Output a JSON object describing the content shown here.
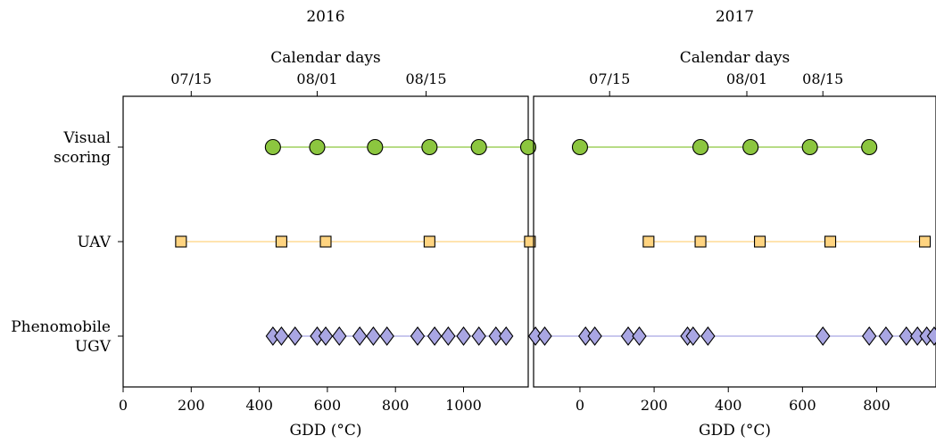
{
  "chart_data": {
    "type": "scatter",
    "row_labels": [
      [
        "Visual",
        "scoring"
      ],
      [
        "UAV"
      ],
      [
        "Phenomobile",
        "UGV"
      ]
    ],
    "panels": [
      {
        "year": "2016",
        "top_axis_label": "Calendar days",
        "top_ticks": [
          {
            "label": "07/15",
            "gdd": 200
          },
          {
            "label": "08/01",
            "gdd": 570
          },
          {
            "label": "08/15",
            "gdd": 890
          }
        ],
        "xlabel": "GDD (°C)",
        "xlim": [
          0,
          1190
        ],
        "xticks": [
          0,
          200,
          400,
          600,
          800,
          1000
        ],
        "series": [
          {
            "name": "Visual scoring",
            "marker": "circle",
            "color": "#8cc63f",
            "line_color": "#8cc63f",
            "x": [
              440,
              570,
              740,
              900,
              1045,
              1190
            ]
          },
          {
            "name": "UAV",
            "marker": "square",
            "color": "#ffd480",
            "line_color": "#ffd480",
            "x": [
              170,
              465,
              595,
              900,
              1195
            ]
          },
          {
            "name": "Phenomobile UGV",
            "marker": "diamond",
            "color": "#a9a6e3",
            "line_color": "#a9a6e3",
            "x": [
              440,
              465,
              505,
              570,
              595,
              635,
              695,
              735,
              775,
              865,
              915,
              955,
              1000,
              1045,
              1095,
              1125
            ]
          }
        ]
      },
      {
        "year": "2017",
        "top_axis_label": "Calendar days",
        "top_ticks": [
          {
            "label": "07/15",
            "gdd": 80
          },
          {
            "label": "08/01",
            "gdd": 450
          },
          {
            "label": "08/15",
            "gdd": 655
          }
        ],
        "xlabel": "GDD (°C)",
        "xlim": [
          -125,
          960
        ],
        "xticks": [
          0,
          200,
          400,
          600,
          800
        ],
        "series": [
          {
            "name": "Visual scoring",
            "marker": "circle",
            "color": "#8cc63f",
            "line_color": "#8cc63f",
            "x": [
              0,
              325,
              460,
              620,
              780
            ]
          },
          {
            "name": "UAV",
            "marker": "square",
            "color": "#ffd480",
            "line_color": "#ffd480",
            "x": [
              185,
              325,
              485,
              675,
              930
            ]
          },
          {
            "name": "Phenomobile UGV",
            "marker": "diamond",
            "color": "#a9a6e3",
            "line_color": "#a9a6e3",
            "x": [
              -120,
              -95,
              15,
              40,
              130,
              160,
              290,
              305,
              345,
              655,
              780,
              825,
              880,
              910,
              935,
              955
            ]
          }
        ]
      }
    ]
  }
}
